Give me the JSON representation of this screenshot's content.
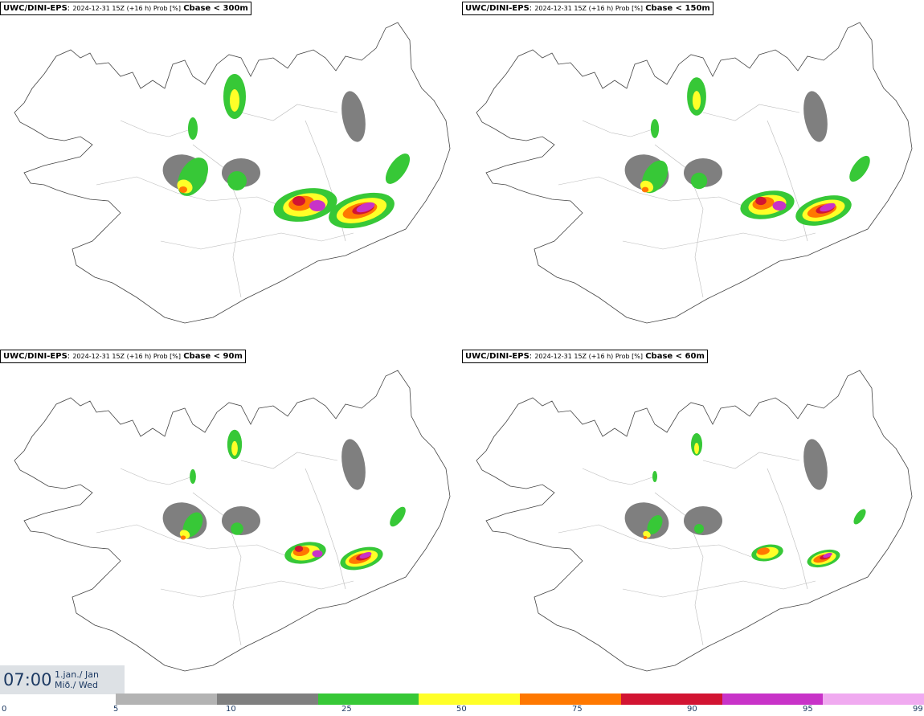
{
  "panels": [
    {
      "model": "UWC/DINI-EPS",
      "meta": "2024-12-31 15Z (+16 h) Prob [%]",
      "variable": "Cbase < 300m"
    },
    {
      "model": "UWC/DINI-EPS",
      "meta": "2024-12-31 15Z (+16 h) Prob [%]",
      "variable": "Cbase < 150m"
    },
    {
      "model": "UWC/DINI-EPS",
      "meta": "2024-12-31 15Z (+16 h) Prob [%]",
      "variable": "Cbase < 90m"
    },
    {
      "model": "UWC/DINI-EPS",
      "meta": "2024-12-31 15Z (+16 h) Prob [%]",
      "variable": "Cbase < 60m"
    }
  ],
  "valid": {
    "time": "07:00",
    "date_line1": "1.jan./ Jan",
    "date_line2": "Mið./ Wed"
  },
  "legend": {
    "ticks": [
      "0",
      "5",
      "10",
      "25",
      "50",
      "75",
      "90",
      "95",
      "99"
    ],
    "colors": [
      "#b3b3b3",
      "#7f7f7f",
      "#37c837",
      "#ffff28",
      "#ff7800",
      "#d21432",
      "#c833c8",
      "#f0aaf0"
    ]
  }
}
